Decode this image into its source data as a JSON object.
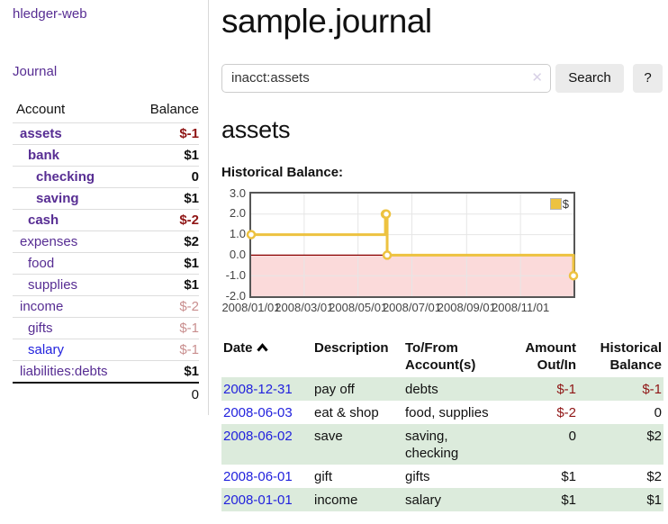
{
  "app": {
    "brand": "hledger-web",
    "nav_journal": "Journal"
  },
  "sidebar": {
    "header": {
      "account": "Account",
      "balance": "Balance"
    },
    "accounts": [
      {
        "name": "assets",
        "level": 1,
        "bold": true,
        "balance": "$-1",
        "balance_style": "neg"
      },
      {
        "name": "bank",
        "level": 2,
        "bold": true,
        "balance": "$1",
        "balance_style": "pos"
      },
      {
        "name": "checking",
        "level": 3,
        "bold": true,
        "balance": "0",
        "balance_style": "pos"
      },
      {
        "name": "saving",
        "level": 3,
        "bold": true,
        "balance": "$1",
        "balance_style": "pos"
      },
      {
        "name": "cash",
        "level": 2,
        "bold": true,
        "balance": "$-2",
        "balance_style": "neg"
      },
      {
        "name": "expenses",
        "level": 1,
        "bold": false,
        "balance": "$2",
        "balance_style": "pos"
      },
      {
        "name": "food",
        "level": 2,
        "bold": false,
        "balance": "$1",
        "balance_style": "pos"
      },
      {
        "name": "supplies",
        "level": 2,
        "bold": false,
        "balance": "$1",
        "balance_style": "pos"
      },
      {
        "name": "income",
        "level": 1,
        "bold": false,
        "balance": "$-2",
        "balance_style": "negfade"
      },
      {
        "name": "gifts",
        "level": 2,
        "bold": false,
        "balance": "$-1",
        "balance_style": "negfade"
      },
      {
        "name": "salary",
        "level": 2,
        "bold": false,
        "balance": "$-1",
        "balance_style": "negfade",
        "link_style": "blue"
      },
      {
        "name": "liabilities:debts",
        "level": 1,
        "bold": false,
        "balance": "$1",
        "balance_style": "pos"
      }
    ],
    "total": "0"
  },
  "header": {
    "title": "sample.journal"
  },
  "search": {
    "value": "inacct:assets",
    "clear_icon": "✕",
    "button_label": "Search",
    "help_label": "?"
  },
  "account_page": {
    "heading": "assets",
    "chart_label": "Historical Balance:"
  },
  "chart_data": {
    "type": "line",
    "style": "step",
    "title": "Historical Balance:",
    "series": [
      {
        "name": "$",
        "color": "#edc240",
        "points": [
          {
            "date": "2008-01-01",
            "day": 0,
            "value": 1
          },
          {
            "date": "2008-06-01",
            "day": 152,
            "value": 2
          },
          {
            "date": "2008-06-02",
            "day": 153,
            "value": 2
          },
          {
            "date": "2008-06-03",
            "day": 154,
            "value": 0
          },
          {
            "date": "2008-12-31",
            "day": 365,
            "value": -1
          }
        ]
      }
    ],
    "x_ticks": [
      "2008/01/01",
      "2008/03/01",
      "2008/05/01",
      "2008/07/01",
      "2008/09/01",
      "2008/11/01"
    ],
    "x_tick_day_offsets": [
      0,
      60,
      121,
      182,
      244,
      305
    ],
    "x_range_days": [
      0,
      365
    ],
    "y_ticks": [
      3.0,
      2.0,
      1.0,
      0.0,
      -1.0,
      -2.0
    ],
    "ylim": [
      -2,
      3
    ],
    "grid": true,
    "legend": {
      "label": "$",
      "position": "top-right"
    },
    "colors": {
      "line": "#edc240",
      "marker_fill": "#ffffff",
      "negative_region": "#fbdada",
      "zero_line": "#8b0000",
      "grid_line": "#e6e6e6",
      "border": "#565656"
    }
  },
  "register": {
    "columns": [
      "Date",
      "Description",
      "To/From Account(s)",
      "Amount Out/In",
      "Historical Balance"
    ],
    "sort": {
      "column": "Date",
      "direction": "asc"
    },
    "rows": [
      {
        "date": "2008-12-31",
        "description": "pay off",
        "accounts": "debts",
        "amount": "$-1",
        "amount_neg": true,
        "balance": "$-1",
        "balance_neg": true
      },
      {
        "date": "2008-06-03",
        "description": "eat & shop",
        "accounts": "food, supplies",
        "amount": "$-2",
        "amount_neg": true,
        "balance": "0",
        "balance_neg": false
      },
      {
        "date": "2008-06-02",
        "description": "save",
        "accounts": "saving, checking",
        "amount": "0",
        "amount_neg": false,
        "balance": "$2",
        "balance_neg": false
      },
      {
        "date": "2008-06-01",
        "description": "gift",
        "accounts": "gifts",
        "amount": "$1",
        "amount_neg": false,
        "balance": "$2",
        "balance_neg": false
      },
      {
        "date": "2008-01-01",
        "description": "income",
        "accounts": "salary",
        "amount": "$1",
        "amount_neg": false,
        "balance": "$1",
        "balance_neg": false
      }
    ]
  }
}
